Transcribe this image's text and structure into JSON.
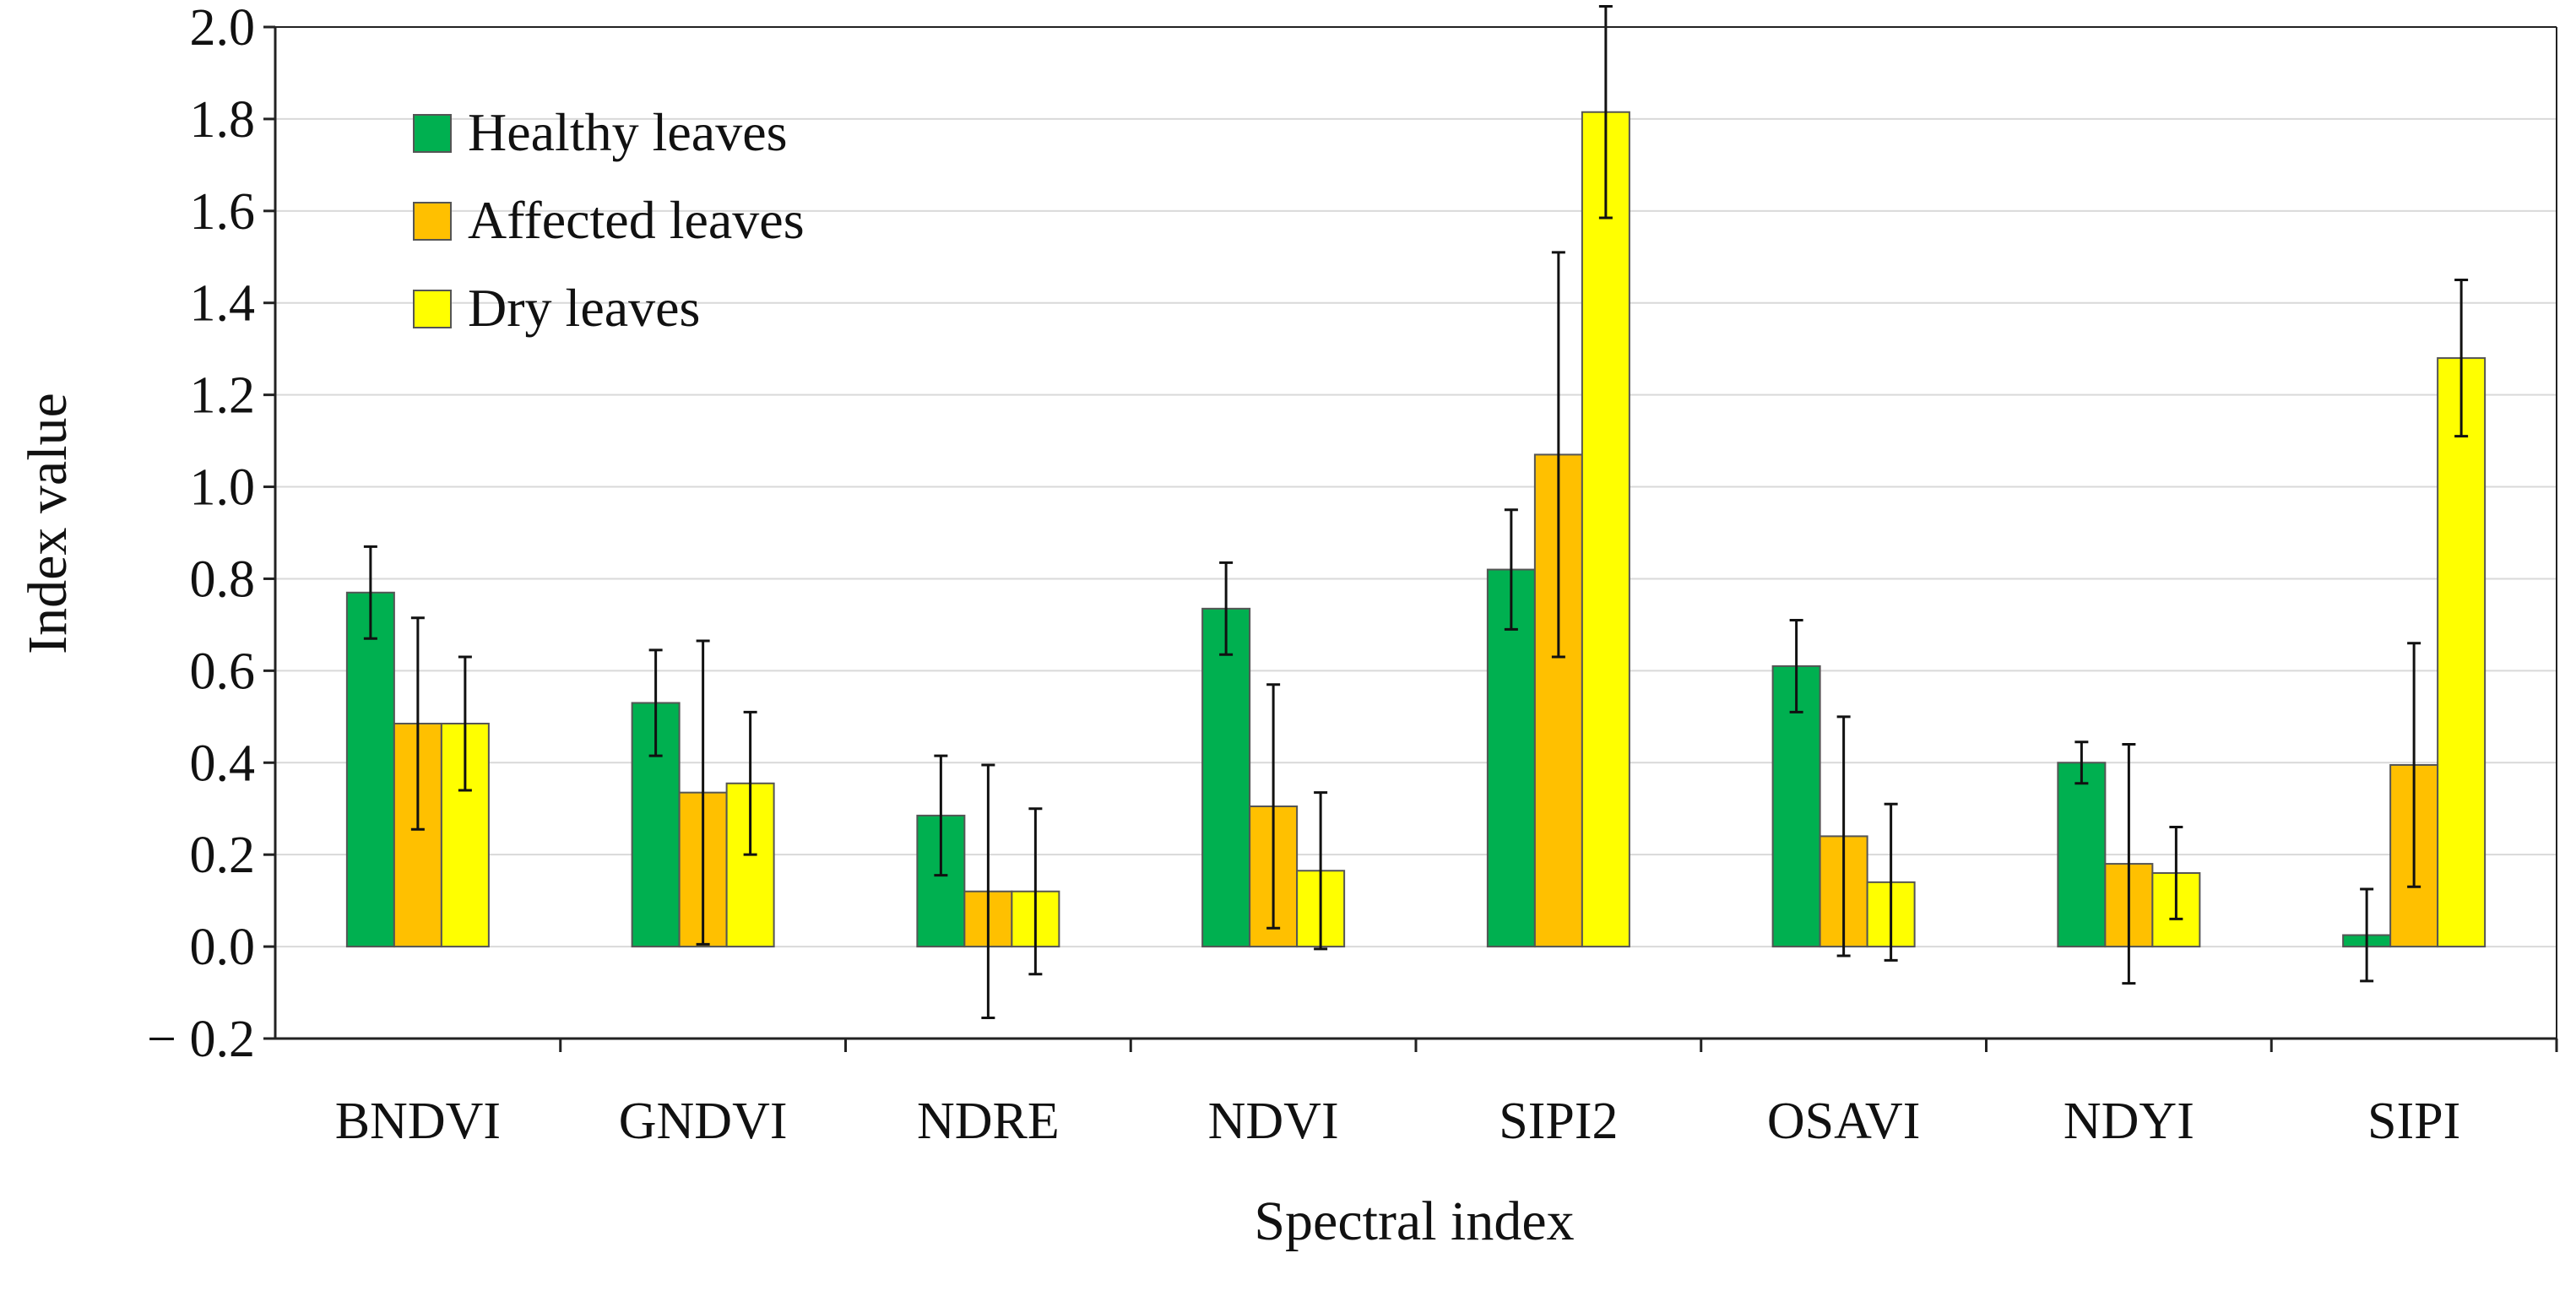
{
  "chart_data": {
    "type": "bar",
    "xlabel": "Spectral index",
    "ylabel": "Index value",
    "ylim": [
      -0.2,
      2.0
    ],
    "yticks": [
      -0.2,
      0.0,
      0.2,
      0.4,
      0.6,
      0.8,
      1.0,
      1.2,
      1.4,
      1.6,
      1.8,
      2.0
    ],
    "ytick_labels": [
      "− 0.2",
      "0.0",
      "0.2",
      "0.4",
      "0.6",
      "0.8",
      "1.0",
      "1.2",
      "1.4",
      "1.6",
      "1.8",
      "2.0"
    ],
    "grid": true,
    "legend_position": "top-left",
    "categories": [
      "BNDVI",
      "GNDVI",
      "NDRE",
      "NDVI",
      "SIPI2",
      "OSAVI",
      "NDYI",
      "SIPI"
    ],
    "series": [
      {
        "name": "Healthy leaves",
        "color": "#00b050",
        "values": [
          0.77,
          0.53,
          0.285,
          0.735,
          0.82,
          0.61,
          0.4,
          0.025
        ],
        "errors": [
          0.1,
          0.115,
          0.13,
          0.1,
          0.13,
          0.1,
          0.045,
          0.1
        ]
      },
      {
        "name": "Affected leaves",
        "color": "#ffc000",
        "values": [
          0.485,
          0.335,
          0.12,
          0.305,
          1.07,
          0.24,
          0.18,
          0.395
        ],
        "errors": [
          0.23,
          0.33,
          0.275,
          0.265,
          0.44,
          0.26,
          0.26,
          0.265
        ]
      },
      {
        "name": "Dry leaves",
        "color": "#ffff00",
        "values": [
          0.485,
          0.355,
          0.12,
          0.165,
          1.815,
          0.14,
          0.16,
          1.28
        ],
        "errors": [
          0.145,
          0.155,
          0.18,
          0.17,
          0.23,
          0.17,
          0.1,
          0.17
        ]
      }
    ]
  }
}
